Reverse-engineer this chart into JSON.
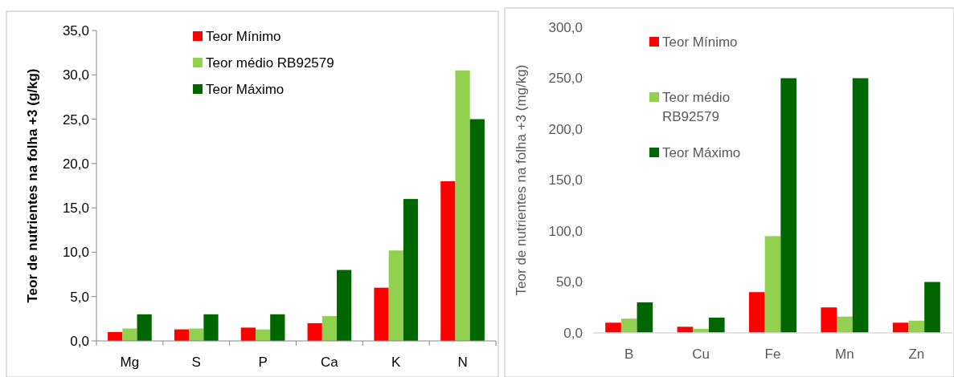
{
  "chart_data": [
    {
      "type": "bar",
      "categories": [
        "Mg",
        "S",
        "P",
        "Ca",
        "K",
        "N"
      ],
      "ylabel": "Teor de nutrientes na folha +3 (g/kg)",
      "ylim": [
        0,
        35
      ],
      "yticks": [
        {
          "value": 0,
          "label": "0,0"
        },
        {
          "value": 5,
          "label": "5,0"
        },
        {
          "value": 10,
          "label": "10,0"
        },
        {
          "value": 15,
          "label": "15,0"
        },
        {
          "value": 20,
          "label": "20,0"
        },
        {
          "value": 25,
          "label": "25,0"
        },
        {
          "value": 30,
          "label": "30,0"
        },
        {
          "value": 35,
          "label": "35,0"
        }
      ],
      "legend": "top",
      "series": [
        {
          "name": "Teor Mínimo",
          "color": "#ff0000",
          "values": [
            1.0,
            1.3,
            1.5,
            2.0,
            6.0,
            18.0
          ]
        },
        {
          "name": "Teor médio RB92579",
          "color": "#92d050",
          "values": [
            1.4,
            1.4,
            1.3,
            2.8,
            10.2,
            30.5
          ]
        },
        {
          "name": "Teor Máximo",
          "color": "#006600",
          "values": [
            3.0,
            3.0,
            3.0,
            8.0,
            16.0,
            25.0
          ]
        }
      ]
    },
    {
      "type": "bar",
      "categories": [
        "B",
        "Cu",
        "Fe",
        "Mn",
        "Zn"
      ],
      "ylabel": "Teor de nutrientes na folha +3 (mg/kg)",
      "ylim": [
        0,
        300
      ],
      "yticks": [
        {
          "value": 0,
          "label": "0,0"
        },
        {
          "value": 50,
          "label": "50,0"
        },
        {
          "value": 100,
          "label": "100,0"
        },
        {
          "value": 150,
          "label": "150,0"
        },
        {
          "value": 200,
          "label": "200,0"
        },
        {
          "value": 250,
          "label": "250,0"
        },
        {
          "value": 300,
          "label": "300,0"
        }
      ],
      "legend": "top",
      "series": [
        {
          "name": "Teor Mínimo",
          "color": "#ff0000",
          "values": [
            10,
            6,
            40,
            25,
            10
          ]
        },
        {
          "name": "Teor médio RB92579",
          "color": "#92d050",
          "values": [
            14,
            4,
            95,
            16,
            12
          ]
        },
        {
          "name": "Teor Máximo",
          "color": "#006600",
          "values": [
            30,
            15,
            250,
            250,
            50
          ]
        }
      ]
    }
  ]
}
